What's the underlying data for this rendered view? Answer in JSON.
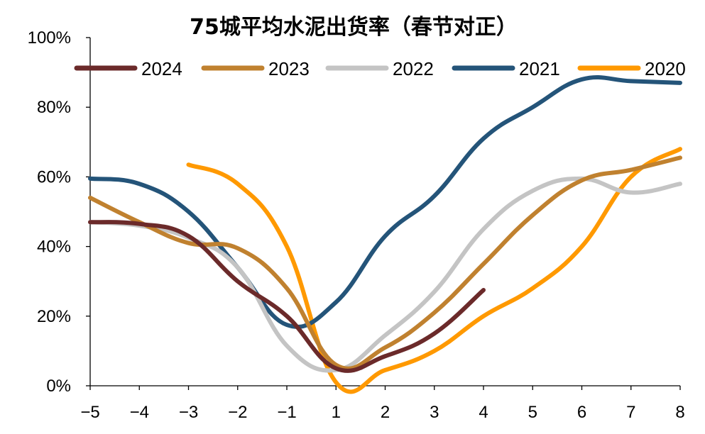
{
  "chart_data": {
    "type": "line",
    "title": "75城平均水泥出货率（春节对正）",
    "xlabel": "",
    "ylabel": "",
    "categories": [
      "−5",
      "−4",
      "−3",
      "−2",
      "−1",
      "1",
      "2",
      "3",
      "4",
      "5",
      "6",
      "7",
      "8"
    ],
    "ylim": [
      0,
      100
    ],
    "yticks": [
      "0%",
      "20%",
      "40%",
      "60%",
      "80%",
      "100%"
    ],
    "ytick_values": [
      0,
      20,
      40,
      60,
      80,
      100
    ],
    "grid": false,
    "legend_placement": "top",
    "series": [
      {
        "name": "2024",
        "color": "#6B2A2A",
        "values": [
          47,
          46.5,
          43,
          30,
          20,
          5,
          8.5,
          15,
          27.5,
          null,
          null,
          null,
          null
        ]
      },
      {
        "name": "2023",
        "color": "#C0812F",
        "values": [
          54,
          47,
          41,
          39.5,
          28,
          6,
          11,
          21,
          35,
          49,
          59,
          62,
          65.5
        ]
      },
      {
        "name": "2022",
        "color": "#C4C4C4",
        "values": [
          47,
          46,
          42.5,
          34,
          11.5,
          4.5,
          14.5,
          27,
          45,
          56,
          59.5,
          55.5,
          58
        ]
      },
      {
        "name": "2021",
        "color": "#245479",
        "values": [
          59.5,
          58,
          50,
          34,
          17.5,
          24,
          43,
          54.5,
          71,
          80,
          88,
          87.5,
          87
        ]
      },
      {
        "name": "2020",
        "color": "#FF9900",
        "values": [
          null,
          null,
          63.5,
          58,
          40,
          1,
          4.5,
          10,
          20,
          28,
          40,
          60,
          68
        ]
      }
    ]
  }
}
